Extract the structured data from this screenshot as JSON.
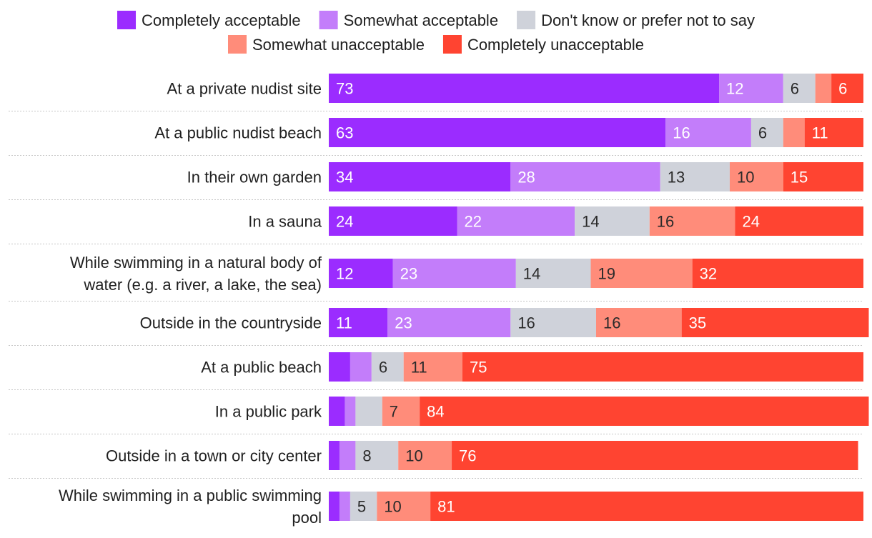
{
  "chart_data": {
    "type": "bar",
    "orientation": "horizontal",
    "stacked": true,
    "title": "",
    "xlabel": "",
    "ylabel": "",
    "xlim": [
      0,
      100
    ],
    "grid": false,
    "legend_position": "top",
    "categories": [
      "At a private nudist site",
      "At a public nudist beach",
      "In their own garden",
      "In a sauna",
      "While swimming in a natural body of water (e.g. a river, a lake, the sea)",
      "Outside in the countryside",
      "At a public beach",
      "In a public park",
      "Outside in a town or city center",
      "While swimming in a public swimming pool"
    ],
    "category_lines": [
      [
        "At a private nudist site"
      ],
      [
        "At a public nudist beach"
      ],
      [
        "In their own garden"
      ],
      [
        "In a sauna"
      ],
      [
        "While swimming in a natural body of",
        "water (e.g. a river, a lake, the sea)"
      ],
      [
        "Outside in the countryside"
      ],
      [
        "At a public beach"
      ],
      [
        "In a public park"
      ],
      [
        "Outside in a town or city center"
      ],
      [
        "While swimming in a public swimming",
        "pool"
      ]
    ],
    "series": [
      {
        "name": "Completely acceptable",
        "color": "#9b2cff",
        "label_color": "#ffffff",
        "values": [
          73,
          63,
          34,
          24,
          12,
          11,
          4,
          3,
          2,
          2
        ],
        "labels": [
          "73",
          "63",
          "34",
          "24",
          "12",
          "11",
          "",
          "",
          "",
          ""
        ]
      },
      {
        "name": "Somewhat acceptable",
        "color": "#c37dfa",
        "label_color": "#ffffff",
        "values": [
          12,
          16,
          28,
          22,
          23,
          23,
          4,
          2,
          3,
          2
        ],
        "labels": [
          "12",
          "16",
          "28",
          "22",
          "23",
          "23",
          "",
          "",
          "",
          ""
        ]
      },
      {
        "name": "Don't know or prefer not to say",
        "color": "#cfd2da",
        "label_color": "#2a2a2a",
        "values": [
          6,
          6,
          13,
          14,
          14,
          16,
          6,
          5,
          8,
          5
        ],
        "labels": [
          "6",
          "6",
          "13",
          "14",
          "14",
          "16",
          "6",
          "",
          "8",
          "5"
        ]
      },
      {
        "name": "Somewhat unacceptable",
        "color": "#ff8c7a",
        "label_color": "#2a2a2a",
        "values": [
          3,
          4,
          10,
          16,
          19,
          16,
          11,
          7,
          10,
          10
        ],
        "labels": [
          "",
          "",
          "10",
          "16",
          "19",
          "16",
          "11",
          "7",
          "10",
          "10"
        ]
      },
      {
        "name": "Completely unacceptable",
        "color": "#ff4431",
        "label_color": "#ffffff",
        "values": [
          6,
          11,
          15,
          24,
          32,
          35,
          75,
          84,
          76,
          81
        ],
        "labels": [
          "6",
          "11",
          "15",
          "24",
          "32",
          "35",
          "75",
          "84",
          "76",
          "81"
        ]
      }
    ],
    "legend_rows": [
      [
        0,
        1,
        2
      ],
      [
        3,
        4
      ]
    ]
  }
}
